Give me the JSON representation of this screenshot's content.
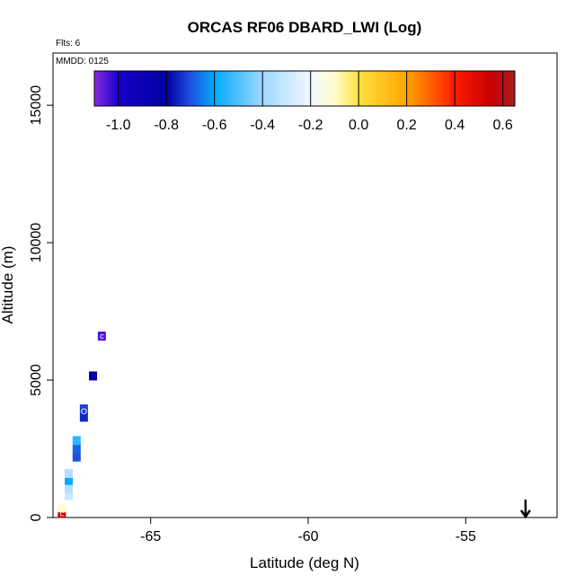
{
  "chart_data": {
    "type": "heatmap",
    "title": "ORCAS RF06 DBARD_LWI (Log)",
    "flights_label": "Flts: 6",
    "date_label": "MMDD: 0125",
    "xlabel": "Latitude (deg N)",
    "ylabel": "Altitude (m)",
    "xlim": [
      -68.1,
      -52.1
    ],
    "ylim": [
      0,
      16900
    ],
    "x_ticks": [
      -65,
      -60,
      -55
    ],
    "y_ticks": [
      0,
      5000,
      10000,
      15000
    ],
    "x_tick_labels": [
      "-65",
      "-60",
      "-55"
    ],
    "y_tick_labels": [
      "0",
      "5000",
      "10000",
      "15000"
    ],
    "colorbar": {
      "range": [
        -1.1,
        0.65
      ],
      "ticks": [
        -1.0,
        -0.8,
        -0.6,
        -0.4,
        -0.2,
        0.0,
        0.2,
        0.4,
        0.6
      ],
      "tick_labels": [
        "-1.0",
        "-0.8",
        "-0.6",
        "-0.4",
        "-0.2",
        "0.0",
        "0.2",
        "0.4",
        "0.6"
      ],
      "stops": [
        {
          "v": -1.1,
          "color": "#8a2be2"
        },
        {
          "v": -1.0,
          "color": "#1800c8"
        },
        {
          "v": -0.8,
          "color": "#0000a0"
        },
        {
          "v": -0.7,
          "color": "#1f4fe0"
        },
        {
          "v": -0.6,
          "color": "#00aaff"
        },
        {
          "v": -0.4,
          "color": "#9fd8ff"
        },
        {
          "v": -0.2,
          "color": "#f2f8ff"
        },
        {
          "v": -0.1,
          "color": "#fffdd0"
        },
        {
          "v": 0.0,
          "color": "#ffe040"
        },
        {
          "v": 0.2,
          "color": "#ffa500"
        },
        {
          "v": 0.4,
          "color": "#ff1a00"
        },
        {
          "v": 0.55,
          "color": "#c80000"
        },
        {
          "v": 0.65,
          "color": "#a82020"
        }
      ]
    },
    "cells": [
      {
        "lat": -67.82,
        "alt": 150,
        "value": 0.55
      },
      {
        "lat": -67.82,
        "alt": 350,
        "value": -0.1
      },
      {
        "lat": -67.6,
        "alt": 800,
        "value": -0.3
      },
      {
        "lat": -67.6,
        "alt": 1050,
        "value": -0.35
      },
      {
        "lat": -67.6,
        "alt": 1350,
        "value": -0.6
      },
      {
        "lat": -67.6,
        "alt": 1600,
        "value": -0.35
      },
      {
        "lat": -67.35,
        "alt": 2200,
        "value": -0.7
      },
      {
        "lat": -67.35,
        "alt": 2500,
        "value": -0.68
      },
      {
        "lat": -67.35,
        "alt": 2800,
        "value": -0.55
      },
      {
        "lat": -67.12,
        "alt": 3650,
        "value": -0.75
      },
      {
        "lat": -67.12,
        "alt": 3950,
        "value": -0.72
      },
      {
        "lat": -66.83,
        "alt": 5150,
        "value": -0.85
      },
      {
        "lat": -66.55,
        "alt": 6600,
        "value": -1.05
      }
    ],
    "markers": [
      {
        "lat": -67.82,
        "alt": 150,
        "symbol": "c"
      },
      {
        "lat": -67.12,
        "alt": 3850,
        "symbol": "O"
      },
      {
        "lat": -66.55,
        "alt": 6600,
        "symbol": "c"
      }
    ],
    "arrow": {
      "lat": -53.1,
      "direction": "down"
    }
  }
}
